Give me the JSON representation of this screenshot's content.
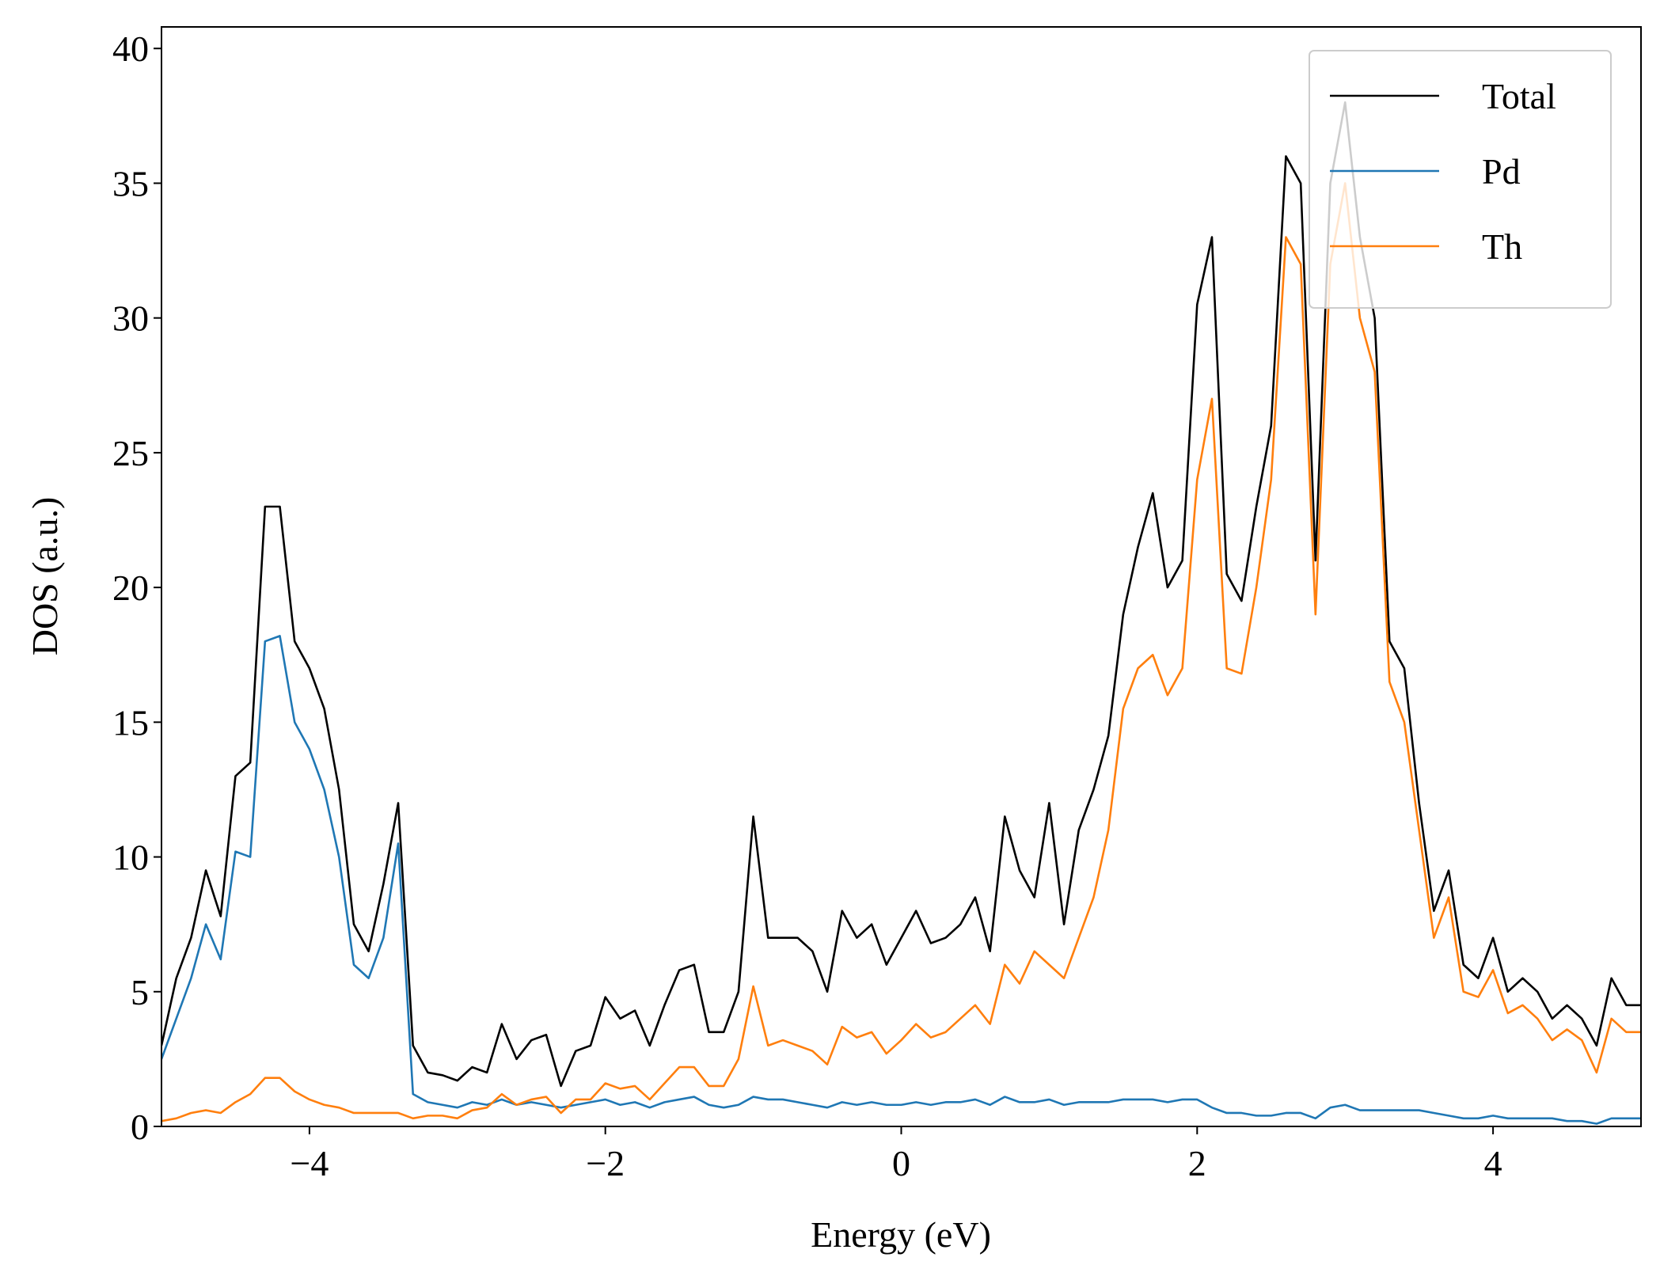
{
  "chart_data": {
    "type": "line",
    "xlabel": "Energy (eV)",
    "ylabel": "DOS (a.u.)",
    "xlim": [
      -5,
      5
    ],
    "ylim": [
      0,
      40.8
    ],
    "xticks": [
      {
        "value": -4,
        "label": "−4"
      },
      {
        "value": -2,
        "label": "−2"
      },
      0,
      2,
      4
    ],
    "yticks": [
      0,
      5,
      10,
      15,
      20,
      25,
      30,
      35,
      40
    ],
    "legend": "upper right",
    "x": [
      -5.0,
      -4.9,
      -4.8,
      -4.7,
      -4.6,
      -4.5,
      -4.4,
      -4.3,
      -4.2,
      -4.1,
      -4.0,
      -3.9,
      -3.8,
      -3.7,
      -3.6,
      -3.5,
      -3.4,
      -3.3,
      -3.2,
      -3.1,
      -3.0,
      -2.9,
      -2.8,
      -2.7,
      -2.6,
      -2.5,
      -2.4,
      -2.3,
      -2.2,
      -2.1,
      -2.0,
      -1.9,
      -1.8,
      -1.7,
      -1.6,
      -1.5,
      -1.4,
      -1.3,
      -1.2,
      -1.1,
      -1.0,
      -0.9,
      -0.8,
      -0.7,
      -0.6,
      -0.5,
      -0.4,
      -0.3,
      -0.2,
      -0.1,
      0.0,
      0.1,
      0.2,
      0.3,
      0.4,
      0.5,
      0.6,
      0.7,
      0.8,
      0.9,
      1.0,
      1.1,
      1.2,
      1.3,
      1.4,
      1.5,
      1.6,
      1.7,
      1.8,
      1.9,
      2.0,
      2.1,
      2.2,
      2.3,
      2.4,
      2.5,
      2.6,
      2.7,
      2.8,
      2.9,
      3.0,
      3.1,
      3.2,
      3.3,
      3.4,
      3.5,
      3.6,
      3.7,
      3.8,
      3.9,
      4.0,
      4.1,
      4.2,
      4.3,
      4.4,
      4.5,
      4.6,
      4.7,
      4.8,
      4.9,
      5.0
    ],
    "series": [
      {
        "name": "Total",
        "color": "#000000",
        "values": [
          3.0,
          5.5,
          7.0,
          9.5,
          7.8,
          13.0,
          13.5,
          23.0,
          23.0,
          18.0,
          17.0,
          15.5,
          12.5,
          7.5,
          6.5,
          9.0,
          12.0,
          3.0,
          2.0,
          1.9,
          1.7,
          2.2,
          2.0,
          3.8,
          2.5,
          3.2,
          3.4,
          1.5,
          2.8,
          3.0,
          4.8,
          4.0,
          4.3,
          3.0,
          4.5,
          5.8,
          6.0,
          3.5,
          3.5,
          5.0,
          11.5,
          7.0,
          7.0,
          7.0,
          6.5,
          5.0,
          8.0,
          7.0,
          7.5,
          6.0,
          7.0,
          8.0,
          6.8,
          7.0,
          7.5,
          8.5,
          6.5,
          11.5,
          9.5,
          8.5,
          12.0,
          7.5,
          11.0,
          12.5,
          14.5,
          19.0,
          21.5,
          23.5,
          20.0,
          21.0,
          30.5,
          33.0,
          20.5,
          19.5,
          23.0,
          26.0,
          36.0,
          35.0,
          21.0,
          35.0,
          38.0,
          33.0,
          30.0,
          18.0,
          17.0,
          12.0,
          8.0,
          9.5,
          6.0,
          5.5,
          7.0,
          5.0,
          5.5,
          5.0,
          4.0,
          4.5,
          4.0,
          3.0,
          5.5,
          4.5,
          4.5
        ]
      },
      {
        "name": "Pd",
        "color": "#1f77b4",
        "values": [
          2.5,
          4.0,
          5.5,
          7.5,
          6.2,
          10.2,
          10.0,
          18.0,
          18.2,
          15.0,
          14.0,
          12.5,
          10.0,
          6.0,
          5.5,
          7.0,
          10.5,
          1.2,
          0.9,
          0.8,
          0.7,
          0.9,
          0.8,
          1.0,
          0.8,
          0.9,
          0.8,
          0.7,
          0.8,
          0.9,
          1.0,
          0.8,
          0.9,
          0.7,
          0.9,
          1.0,
          1.1,
          0.8,
          0.7,
          0.8,
          1.1,
          1.0,
          1.0,
          0.9,
          0.8,
          0.7,
          0.9,
          0.8,
          0.9,
          0.8,
          0.8,
          0.9,
          0.8,
          0.9,
          0.9,
          1.0,
          0.8,
          1.1,
          0.9,
          0.9,
          1.0,
          0.8,
          0.9,
          0.9,
          0.9,
          1.0,
          1.0,
          1.0,
          0.9,
          1.0,
          1.0,
          0.7,
          0.5,
          0.5,
          0.4,
          0.4,
          0.5,
          0.5,
          0.3,
          0.7,
          0.8,
          0.6,
          0.6,
          0.6,
          0.6,
          0.6,
          0.5,
          0.4,
          0.3,
          0.3,
          0.4,
          0.3,
          0.3,
          0.3,
          0.3,
          0.2,
          0.2,
          0.1,
          0.3,
          0.3,
          0.3
        ]
      },
      {
        "name": "Th",
        "color": "#ff7f0e",
        "values": [
          0.2,
          0.3,
          0.5,
          0.6,
          0.5,
          0.9,
          1.2,
          1.8,
          1.8,
          1.3,
          1.0,
          0.8,
          0.7,
          0.5,
          0.5,
          0.5,
          0.5,
          0.3,
          0.4,
          0.4,
          0.3,
          0.6,
          0.7,
          1.2,
          0.8,
          1.0,
          1.1,
          0.5,
          1.0,
          1.0,
          1.6,
          1.4,
          1.5,
          1.0,
          1.6,
          2.2,
          2.2,
          1.5,
          1.5,
          2.5,
          5.2,
          3.0,
          3.2,
          3.0,
          2.8,
          2.3,
          3.7,
          3.3,
          3.5,
          2.7,
          3.2,
          3.8,
          3.3,
          3.5,
          4.0,
          4.5,
          3.8,
          6.0,
          5.3,
          6.5,
          6.0,
          5.5,
          7.0,
          8.5,
          11.0,
          15.5,
          17.0,
          17.5,
          16.0,
          17.0,
          24.0,
          27.0,
          17.0,
          16.8,
          20.0,
          24.0,
          33.0,
          32.0,
          19.0,
          32.0,
          35.0,
          30.0,
          28.0,
          16.5,
          15.0,
          11.0,
          7.0,
          8.5,
          5.0,
          4.8,
          5.8,
          4.2,
          4.5,
          4.0,
          3.2,
          3.6,
          3.2,
          2.0,
          4.0,
          3.5,
          3.5
        ]
      }
    ]
  }
}
